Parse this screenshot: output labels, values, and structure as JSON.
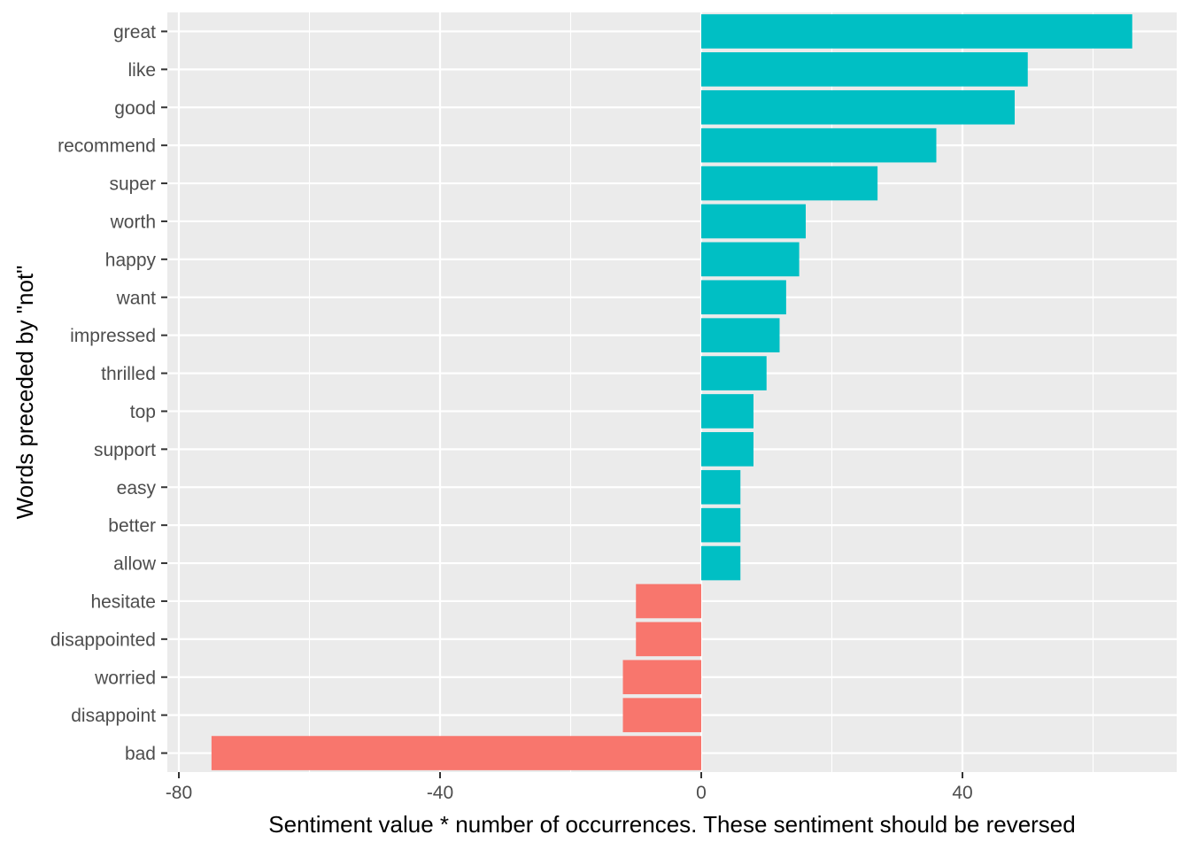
{
  "chart_data": {
    "type": "bar",
    "orientation": "horizontal",
    "xlabel": "Sentiment value * number of occurrences. These sentiment should be reversed",
    "ylabel": "Words preceded by \"not\"",
    "xlim": [
      -80,
      67
    ],
    "x_ticks": [
      -80,
      -40,
      0,
      40
    ],
    "x_tick_labels": [
      "-80",
      "-40",
      "0",
      "40"
    ],
    "grid": true,
    "legend": "none",
    "colors": {
      "positive": "#00BFC4",
      "negative": "#F8766D",
      "panel": "#EBEBEB",
      "grid": "#FFFFFF",
      "tick_text": "#4D4D4D",
      "tick_mark": "#333333"
    },
    "categories": [
      "great",
      "like",
      "good",
      "recommend",
      "super",
      "worth",
      "happy",
      "want",
      "impressed",
      "thrilled",
      "top",
      "support",
      "easy",
      "better",
      "allow",
      "hesitate",
      "disappointed",
      "worried",
      "disappoint",
      "bad"
    ],
    "values": [
      66,
      50,
      48,
      36,
      27,
      16,
      15,
      13,
      12,
      10,
      8,
      8,
      6,
      6,
      6,
      -10,
      -10,
      -12,
      -12,
      -75
    ]
  }
}
